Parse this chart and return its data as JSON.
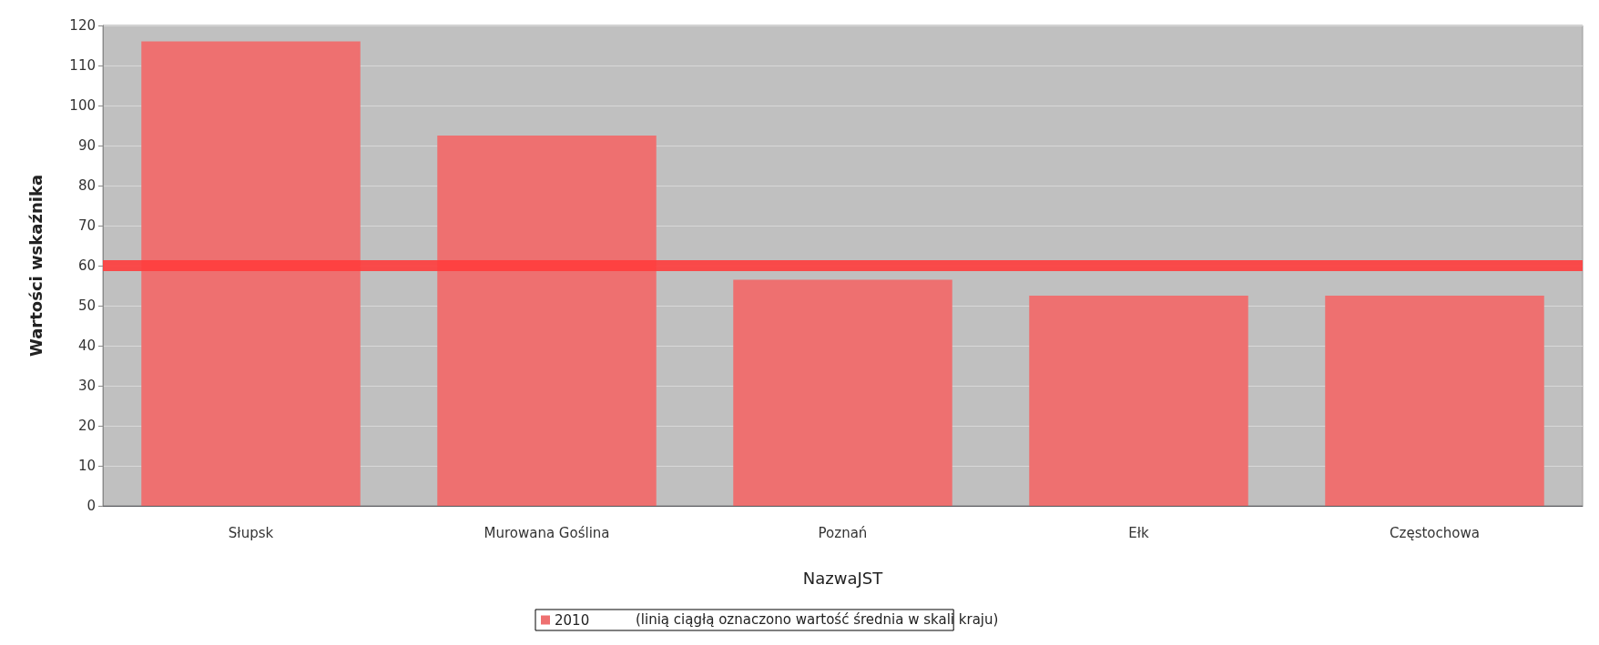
{
  "chart_data": {
    "type": "bar",
    "xlabel": "NazwaJST",
    "ylabel": "Wartości wskaźnika",
    "categories": [
      "Słupsk",
      "Murowana Goślina",
      "Poznań",
      "Ełk",
      "Częstochowa"
    ],
    "series": [
      {
        "name": "2010",
        "color": "#ee7070",
        "values": [
          116,
          92.5,
          56.5,
          52.5,
          52.5
        ]
      }
    ],
    "ylim": [
      0,
      120
    ],
    "yticks": [
      0,
      10,
      20,
      30,
      40,
      50,
      60,
      70,
      80,
      90,
      100,
      110,
      120
    ],
    "grid": "y",
    "legend": "bottom",
    "ref_lines": [
      {
        "axis": "y",
        "value": 60,
        "color": "#ff3c3c"
      }
    ],
    "annotations": [
      "(linią ciągłą oznaczono wartość średnia w skali kraju)"
    ]
  }
}
